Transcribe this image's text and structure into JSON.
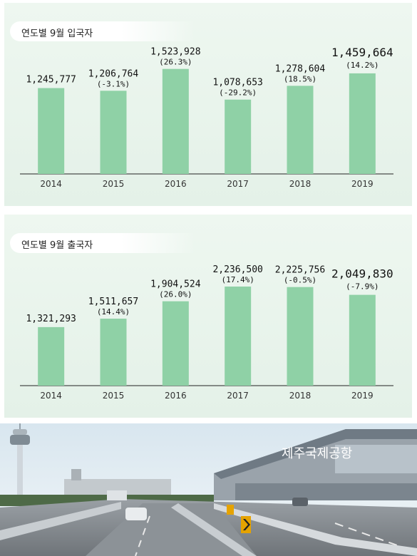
{
  "chart_data": [
    {
      "type": "bar",
      "title": "연도별 9월 입국자",
      "categories": [
        "2014",
        "2015",
        "2016",
        "2017",
        "2018",
        "2019"
      ],
      "values": [
        1245777,
        1206764,
        1523928,
        1078653,
        1278604,
        1459664
      ],
      "value_labels": [
        "1,245,777",
        "1,206,764",
        "1,523,928",
        "1,078,653",
        "1,278,604",
        "1,459,664"
      ],
      "pct_labels": [
        "",
        "(-3.1%)",
        "(26.3%)",
        "(-29.2%)",
        "(18.5%)",
        "(14.2%)"
      ],
      "ylim": [
        0,
        1800000
      ],
      "grid": false,
      "bar_color": "#8fd1a6"
    },
    {
      "type": "bar",
      "title": "연도별 9월 출국자",
      "categories": [
        "2014",
        "2015",
        "2016",
        "2017",
        "2018",
        "2019"
      ],
      "values": [
        1321293,
        1511657,
        1904524,
        2236500,
        2225756,
        2049830
      ],
      "value_labels": [
        "1,321,293",
        "1,511,657",
        "1,904,524",
        "2,236,500",
        "2,225,756",
        "2,049,830"
      ],
      "pct_labels": [
        "",
        "(14.4%)",
        "(26.0%)",
        "(17.4%)",
        "(-0.5%)",
        "(-7.9%)"
      ],
      "ylim": [
        0,
        2800000
      ],
      "grid": false,
      "bar_color": "#8fd1a6"
    }
  ],
  "photo": {
    "sign_text": "제주국제공항",
    "colors": {
      "sky": "#c9dde9",
      "road": "#8a8f94",
      "building": "#9aa3ab"
    }
  }
}
